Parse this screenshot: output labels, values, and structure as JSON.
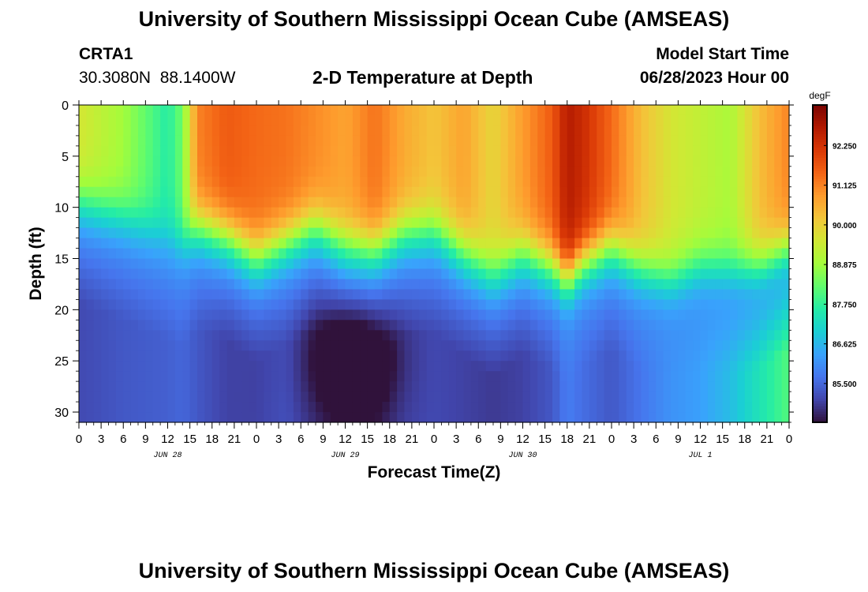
{
  "header": {
    "title_top": "University of Southern Mississippi Ocean Cube (AMSEAS)",
    "station": "CRTA1",
    "coords": "30.3080N  88.1400W",
    "plot_title": "2-D Temperature at Depth",
    "model_start_label": "Model Start Time",
    "model_start_value": "06/28/2023 Hour 00",
    "title_bottom": "University of Southern Mississippi Ocean Cube (AMSEAS)"
  },
  "chart_data": {
    "type": "heatmap",
    "title": "2-D Temperature at Depth",
    "xlabel": "Forecast Time(Z)",
    "ylabel": "Depth (ft)",
    "x_hours": [
      0,
      96
    ],
    "x_tick_labels": [
      "0",
      "3",
      "6",
      "9",
      "12",
      "15",
      "18",
      "21",
      "0",
      "3",
      "6",
      "9",
      "12",
      "15",
      "18",
      "21",
      "0",
      "3",
      "6",
      "9",
      "12",
      "15",
      "18",
      "21",
      "0",
      "3",
      "6",
      "9",
      "12",
      "15",
      "18",
      "21",
      "0"
    ],
    "date_labels": [
      {
        "text": "JUN 28",
        "hour": 12
      },
      {
        "text": "JUN 29",
        "hour": 36
      },
      {
        "text": "JUN 30",
        "hour": 60
      },
      {
        "text": "JUL 1",
        "hour": 84
      }
    ],
    "ylim": [
      0,
      31
    ],
    "y_ticks": [
      0,
      5,
      10,
      15,
      20,
      25,
      30
    ],
    "colorbar": {
      "unit": "degF",
      "range": [
        84.4,
        93.4
      ],
      "ticks": [
        "92.250",
        "91.125",
        "90.000",
        "88.875",
        "87.750",
        "86.625",
        "85.500"
      ],
      "tick_values": [
        92.25,
        91.125,
        90.0,
        88.875,
        87.75,
        86.625,
        85.5
      ],
      "colors": [
        "#30123b",
        "#4145ab",
        "#4675ed",
        "#39a2fc",
        "#1bcfd4",
        "#24eca6",
        "#61fc6c",
        "#a4fc3b",
        "#d1e834",
        "#f3c63a",
        "#fe9b2d",
        "#f36315",
        "#d93806",
        "#b11901",
        "#7a0402"
      ]
    },
    "surface_temp_profile_hours": [
      0,
      6,
      12,
      14,
      16,
      20,
      24,
      28,
      32,
      36,
      40,
      44,
      48,
      52,
      56,
      60,
      64,
      66,
      68,
      72,
      76,
      80,
      84,
      88,
      92,
      96
    ],
    "surface_temp_profile_values": [
      89.6,
      88.9,
      87.6,
      88.4,
      91.1,
      91.6,
      91.4,
      91.3,
      91.0,
      90.7,
      91.3,
      90.6,
      90.2,
      90.7,
      89.9,
      90.8,
      91.6,
      92.7,
      92.4,
      91.4,
      90.3,
      89.6,
      89.3,
      89.0,
      90.3,
      91.1
    ],
    "thermocline_depth_ft": [
      9.5,
      11.0,
      13.0,
      13.5,
      12.0,
      13.0,
      15.0,
      13.5,
      12.0,
      13.8,
      14.2,
      12.5,
      12.3,
      14.5,
      16.5,
      14.5,
      15.8,
      17.2,
      15.5,
      14.0,
      16.0,
      17.0,
      15.8,
      16.0,
      15.8,
      14.0
    ],
    "bottom_temp_ft30": [
      85.1,
      85.3,
      85.4,
      85.5,
      85.3,
      85.0,
      85.0,
      85.2,
      84.8,
      84.5,
      84.6,
      85.0,
      85.1,
      85.0,
      84.9,
      85.0,
      85.3,
      85.8,
      85.6,
      85.3,
      85.7,
      86.1,
      86.3,
      86.7,
      87.4,
      88.1
    ]
  }
}
